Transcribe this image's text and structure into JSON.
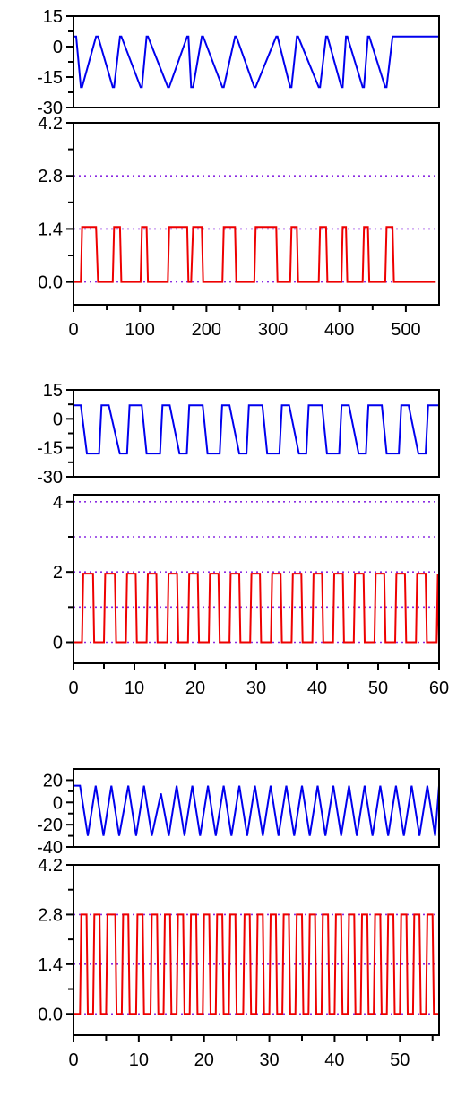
{
  "colors": {
    "blue_series": "#0000ee",
    "red_series": "#ee0000",
    "guide_line": "#8a2be2",
    "axis": "#000000"
  },
  "chart_data": [
    {
      "type": "line",
      "group": 1,
      "role": "top",
      "xlim": [
        0,
        550
      ],
      "ylim": [
        -30,
        15
      ],
      "y_ticks": [
        15,
        0,
        -15,
        -30
      ],
      "y_tick_labels": [
        "15",
        "0",
        "-15",
        "-30"
      ],
      "grid": false,
      "series": [
        {
          "color": "blue",
          "x": [
            0,
            2,
            4,
            11,
            13,
            34,
            37,
            59,
            61,
            70,
            72,
            101,
            103,
            110,
            112,
            142,
            144,
            171,
            173,
            177,
            180,
            193,
            195,
            224,
            226,
            243,
            245,
            272,
            274,
            305,
            307,
            326,
            328,
            336,
            338,
            369,
            371,
            380,
            382,
            403,
            405,
            410,
            412,
            435,
            437,
            443,
            445,
            469,
            471,
            480,
            482,
            550
          ],
          "y": [
            5,
            5,
            5,
            -20,
            -20,
            5,
            5,
            -20,
            -20,
            5,
            5,
            -20,
            -20,
            5,
            5,
            -20,
            -20,
            5,
            5,
            -20,
            -20,
            5,
            5,
            -20,
            -20,
            5,
            5,
            -20,
            -20,
            5,
            5,
            -20,
            -20,
            5,
            5,
            -20,
            -20,
            5,
            5,
            -20,
            -20,
            5,
            5,
            -20,
            -20,
            5,
            5,
            -20,
            -20,
            5,
            5,
            5
          ]
        }
      ]
    },
    {
      "type": "line",
      "group": 1,
      "role": "bottom",
      "xlim": [
        0,
        550
      ],
      "ylim": [
        -0.6,
        4.2
      ],
      "y_ticks": [
        4.2,
        2.8,
        1.4,
        0.0
      ],
      "y_tick_labels": [
        "4.2",
        "2.8",
        "1.4",
        "0.0"
      ],
      "x_ticks": [
        0,
        100,
        200,
        300,
        400,
        500
      ],
      "x_tick_labels": [
        "0",
        "100",
        "200",
        "300",
        "400",
        "500"
      ],
      "guide_lines": [
        2.8,
        1.4,
        0.0
      ],
      "series": [
        {
          "color": "red",
          "x": [
            0,
            11,
            13,
            34,
            37,
            59,
            61,
            70,
            72,
            101,
            103,
            110,
            112,
            142,
            144,
            171,
            173,
            177,
            180,
            193,
            195,
            224,
            226,
            243,
            245,
            272,
            274,
            305,
            307,
            326,
            328,
            336,
            338,
            369,
            371,
            380,
            382,
            403,
            405,
            410,
            412,
            435,
            437,
            443,
            445,
            469,
            471,
            480,
            482,
            545
          ],
          "y": [
            0,
            0,
            1.45,
            1.45,
            0,
            0,
            1.45,
            1.45,
            0,
            0,
            1.45,
            1.45,
            0,
            0,
            1.45,
            1.45,
            0,
            0,
            1.45,
            1.45,
            0,
            0,
            1.45,
            1.45,
            0,
            0,
            1.45,
            1.45,
            0,
            0,
            1.45,
            1.45,
            0,
            0,
            1.45,
            1.45,
            0,
            0,
            1.45,
            1.45,
            0,
            0,
            1.45,
            1.45,
            0,
            0,
            1.45,
            1.45,
            0,
            0
          ]
        }
      ]
    },
    {
      "type": "line",
      "group": 2,
      "role": "top",
      "xlim": [
        0,
        60
      ],
      "ylim": [
        -30,
        15
      ],
      "y_ticks": [
        15,
        0,
        -15,
        -30
      ],
      "y_tick_labels": [
        "15",
        "0",
        "-15",
        "-30"
      ],
      "grid": false,
      "series": [
        {
          "color": "blue",
          "x": [
            0,
            0.8,
            1.2,
            2.2,
            3.0,
            4.2,
            4.6,
            5.4,
            5.8,
            7.6,
            8.0,
            8.8,
            9.2,
            10.8,
            11.2,
            12.0,
            12.4,
            14.2,
            14.6,
            15.4,
            15.8,
            17.4,
            17.8,
            18.6,
            19.0,
            20.8,
            21.2,
            22.0,
            22.4,
            24.0,
            24.4,
            25.2,
            25.6,
            27.2,
            27.6,
            28.4,
            28.8,
            30.6,
            31.0,
            31.8,
            32.2,
            33.8,
            34.2,
            35.0,
            35.4,
            37.0,
            37.4,
            38.2,
            38.6,
            40.4,
            40.8,
            41.6,
            42.0,
            43.6,
            44.0,
            44.8,
            45.2,
            46.8,
            47.2,
            48.0,
            48.4,
            50.2,
            50.6,
            51.4,
            51.8,
            53.4,
            53.8,
            54.6,
            55.0,
            56.6,
            57.0,
            57.8,
            58.2,
            60
          ],
          "y": [
            7,
            7,
            7,
            -18,
            -18,
            -18,
            7,
            7,
            7,
            -18,
            -18,
            -18,
            7,
            7,
            7,
            -18,
            -18,
            -18,
            7,
            7,
            7,
            -18,
            -18,
            -18,
            7,
            7,
            7,
            -18,
            -18,
            -18,
            7,
            7,
            7,
            -18,
            -18,
            -18,
            7,
            7,
            7,
            -18,
            -18,
            -18,
            7,
            7,
            7,
            -18,
            -18,
            -18,
            7,
            7,
            7,
            -18,
            -18,
            -18,
            7,
            7,
            7,
            -18,
            -18,
            -18,
            7,
            7,
            7,
            -18,
            -18,
            -18,
            7,
            7,
            7,
            -18,
            -18,
            -18,
            7,
            7
          ]
        }
      ]
    },
    {
      "type": "line",
      "group": 2,
      "role": "bottom",
      "xlim": [
        0,
        60
      ],
      "ylim": [
        -0.6,
        4.2
      ],
      "y_ticks": [
        4,
        2,
        0
      ],
      "y_tick_labels": [
        "4",
        "2",
        "0"
      ],
      "x_ticks": [
        0,
        10,
        20,
        30,
        40,
        50,
        60
      ],
      "x_tick_labels": [
        "0",
        "10",
        "20",
        "30",
        "40",
        "50",
        "60"
      ],
      "guide_lines": [
        4,
        3,
        2,
        1,
        0
      ],
      "series": [
        {
          "color": "red",
          "x": [
            0,
            1.4,
            1.6,
            3.2,
            3.4,
            5.0,
            5.2,
            6.8,
            7.0,
            8.6,
            8.8,
            10.2,
            10.4,
            12.0,
            12.2,
            13.6,
            13.8,
            15.4,
            15.6,
            17.0,
            17.2,
            18.8,
            19.0,
            20.4,
            20.6,
            22.2,
            22.4,
            23.8,
            24.0,
            25.6,
            25.8,
            27.2,
            27.4,
            29.0,
            29.2,
            30.6,
            30.8,
            32.4,
            32.6,
            34.0,
            34.2,
            35.8,
            36.0,
            37.4,
            37.6,
            39.2,
            39.4,
            40.8,
            41.0,
            42.6,
            42.8,
            44.2,
            44.4,
            46.0,
            46.2,
            47.6,
            47.8,
            49.4,
            49.6,
            51.0,
            51.2,
            52.8,
            53.0,
            54.4,
            54.6,
            56.2,
            56.4,
            57.8,
            58.0,
            59.6,
            59.8,
            60
          ],
          "y": [
            0,
            0,
            1.95,
            1.95,
            0,
            0,
            1.95,
            1.95,
            0,
            0,
            1.95,
            1.95,
            0,
            0,
            1.95,
            1.95,
            0,
            0,
            1.95,
            1.95,
            0,
            0,
            1.95,
            1.95,
            0,
            0,
            1.95,
            1.95,
            0,
            0,
            1.95,
            1.95,
            0,
            0,
            1.95,
            1.95,
            0,
            0,
            1.95,
            1.95,
            0,
            0,
            1.95,
            1.95,
            0,
            0,
            1.95,
            1.95,
            0,
            0,
            1.95,
            1.95,
            0,
            0,
            1.95,
            1.95,
            0,
            0,
            1.95,
            1.95,
            0,
            0,
            1.95,
            1.95,
            0,
            0,
            1.95,
            1.95,
            0,
            0,
            1.95,
            0
          ]
        }
      ]
    },
    {
      "type": "line",
      "group": 3,
      "role": "top",
      "xlim": [
        0,
        56
      ],
      "ylim": [
        -40,
        30
      ],
      "y_ticks": [
        20,
        0,
        -20,
        -40
      ],
      "y_tick_labels": [
        "20",
        "0",
        "-20",
        "-40"
      ],
      "grid": false,
      "series": [
        {
          "color": "blue",
          "x": [
            0,
            1.0,
            2.2,
            3.4,
            4.6,
            5.8,
            7.0,
            8.4,
            9.6,
            10.8,
            12.0,
            13.4,
            14.6,
            15.8,
            17.0,
            18.2,
            19.4,
            20.6,
            21.8,
            23.0,
            24.2,
            25.4,
            26.6,
            27.8,
            29.0,
            30.2,
            31.4,
            32.6,
            33.8,
            35.0,
            36.2,
            37.4,
            38.6,
            39.8,
            41.0,
            42.2,
            43.4,
            44.6,
            45.8,
            47.0,
            48.2,
            49.4,
            50.6,
            51.8,
            53.0,
            54.2,
            55.4,
            56
          ],
          "y": [
            15,
            15,
            -30,
            15,
            -30,
            15,
            -30,
            15,
            -30,
            15,
            -30,
            8,
            -30,
            15,
            -30,
            15,
            -30,
            15,
            -30,
            15,
            -30,
            15,
            -30,
            15,
            -30,
            15,
            -30,
            15,
            -30,
            15,
            -30,
            15,
            -30,
            15,
            -30,
            15,
            -30,
            15,
            -30,
            15,
            -30,
            15,
            -30,
            15,
            -30,
            15,
            -30,
            15
          ]
        }
      ]
    },
    {
      "type": "line",
      "group": 3,
      "role": "bottom",
      "xlim": [
        0,
        56
      ],
      "ylim": [
        -0.6,
        4.2
      ],
      "y_ticks": [
        4.2,
        2.8,
        1.4,
        0.0
      ],
      "y_tick_labels": [
        "4.2",
        "2.8",
        "1.4",
        "0.0"
      ],
      "x_ticks": [
        0,
        10,
        20,
        30,
        40,
        50
      ],
      "x_tick_labels": [
        "0",
        "10",
        "20",
        "30",
        "40",
        "50"
      ],
      "guide_lines": [
        2.8,
        1.4,
        0.0
      ],
      "series": [
        {
          "color": "red",
          "x": [
            0,
            1.0,
            1.2,
            2.0,
            2.2,
            3.0,
            3.2,
            4.0,
            4.2,
            5.0,
            5.2,
            6.4,
            6.6,
            7.4,
            7.6,
            8.4,
            8.6,
            9.6,
            9.8,
            10.6,
            10.8,
            11.8,
            12.0,
            12.8,
            13.0,
            13.8,
            14.0,
            14.8,
            15.0,
            15.8,
            16.0,
            16.8,
            17.0,
            17.8,
            18.0,
            18.8,
            19.0,
            19.8,
            20.0,
            20.8,
            21.0,
            21.8,
            22.0,
            22.8,
            23.0,
            23.8,
            24.0,
            24.8,
            25.0,
            26.0,
            26.2,
            27.0,
            27.2,
            28.0,
            28.2,
            29.0,
            29.2,
            30.0,
            30.2,
            31.0,
            31.2,
            32.0,
            32.2,
            33.0,
            33.2,
            34.0,
            34.2,
            35.0,
            35.2,
            36.0,
            36.2,
            37.0,
            37.2,
            38.0,
            38.2,
            39.0,
            39.2,
            40.0,
            40.2,
            41.0,
            41.2,
            42.0,
            42.2,
            43.0,
            43.2,
            44.0,
            44.2,
            45.0,
            45.2,
            46.0,
            46.2,
            47.0,
            47.2,
            48.0,
            48.2,
            49.0,
            49.2,
            50.0,
            50.2,
            51.0,
            51.2,
            52.0,
            52.2,
            53.0,
            53.2,
            54.0,
            54.2,
            55.0,
            55.2,
            56
          ],
          "y": [
            0,
            0,
            2.8,
            2.8,
            0,
            0,
            2.8,
            2.8,
            0,
            0,
            2.8,
            2.8,
            0,
            0,
            2.8,
            2.8,
            0,
            0,
            2.8,
            2.8,
            0,
            0,
            2.8,
            2.8,
            0,
            0,
            2.8,
            2.8,
            0,
            0,
            2.8,
            2.8,
            0,
            0,
            2.8,
            2.8,
            0,
            0,
            2.8,
            2.8,
            0,
            0,
            2.8,
            2.8,
            0,
            0,
            2.8,
            2.8,
            0,
            0,
            2.8,
            2.8,
            0,
            0,
            2.8,
            2.8,
            0,
            0,
            2.8,
            2.8,
            0,
            0,
            2.8,
            2.8,
            0,
            0,
            2.8,
            2.8,
            0,
            0,
            2.8,
            2.8,
            0,
            0,
            2.8,
            2.8,
            0,
            0,
            2.8,
            2.8,
            0,
            0,
            2.8,
            2.8,
            0,
            0,
            2.8,
            2.8,
            0,
            0,
            2.8,
            2.8,
            0,
            0,
            2.8,
            2.8,
            0,
            0,
            2.8,
            2.8,
            0,
            0,
            2.8,
            2.8,
            0,
            0,
            2.8,
            2.8,
            0,
            0
          ]
        }
      ]
    }
  ]
}
